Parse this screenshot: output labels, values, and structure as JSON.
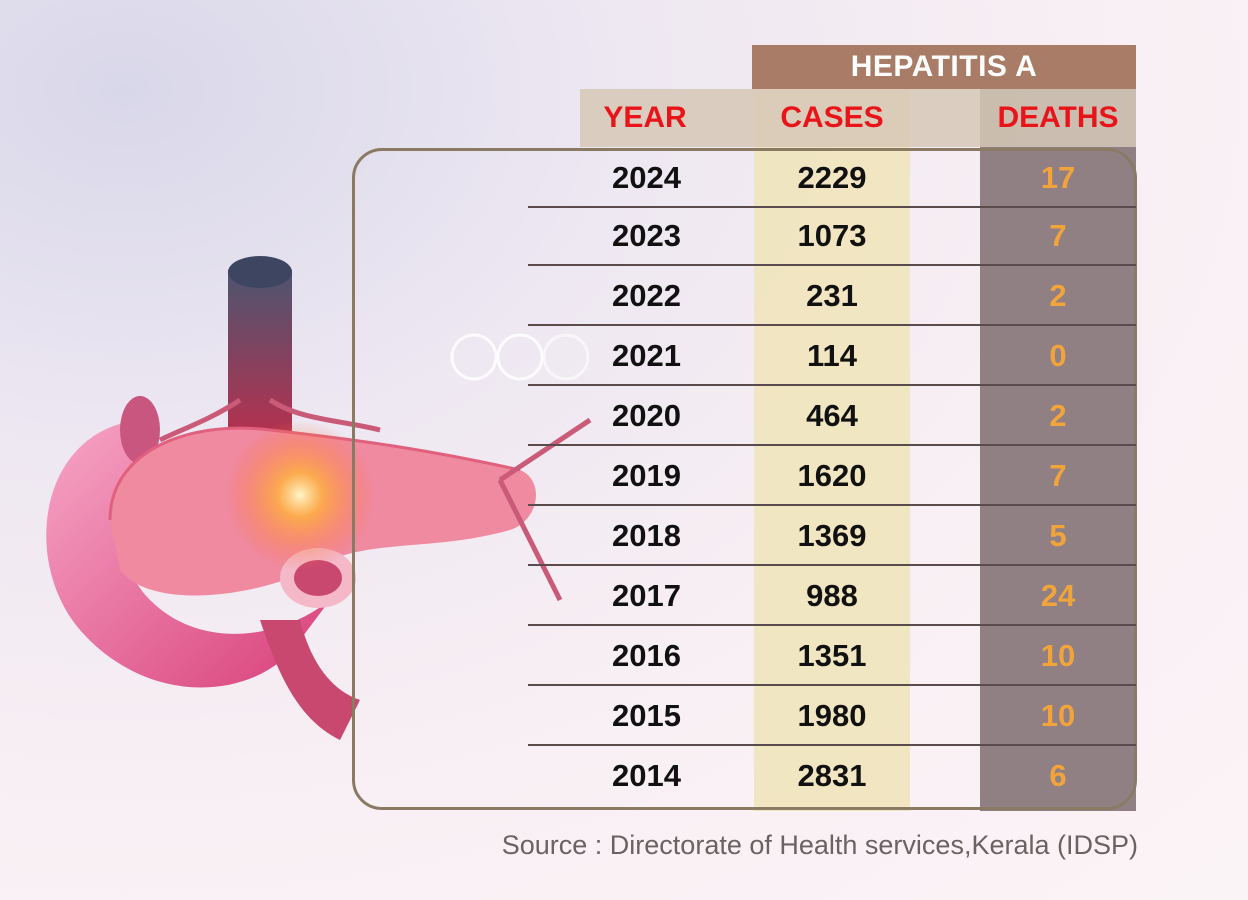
{
  "chart_data": {
    "type": "table",
    "title": "HEPATITIS A",
    "columns": [
      "YEAR",
      "CASES",
      "DEATHS"
    ],
    "rows": [
      {
        "year": "2024",
        "cases": "2229",
        "deaths": "17"
      },
      {
        "year": "2023",
        "cases": "1073",
        "deaths": "7"
      },
      {
        "year": "2022",
        "cases": "231",
        "deaths": "2"
      },
      {
        "year": "2021",
        "cases": "114",
        "deaths": "0"
      },
      {
        "year": "2020",
        "cases": "464",
        "deaths": "2"
      },
      {
        "year": "2019",
        "cases": "1620",
        "deaths": "7"
      },
      {
        "year": "2018",
        "cases": "1369",
        "deaths": "5"
      },
      {
        "year": "2017",
        "cases": "988",
        "deaths": "24"
      },
      {
        "year": "2016",
        "cases": "1351",
        "deaths": "10"
      },
      {
        "year": "2015",
        "cases": "1980",
        "deaths": "10"
      },
      {
        "year": "2014",
        "cases": "2831",
        "deaths": "6"
      }
    ],
    "source": "Source : Directorate of Health services,Kerala (IDSP)"
  },
  "colors": {
    "header_bg": "#a87c66",
    "column_header_text": "#e8141a",
    "deaths_text": "#f2a43a",
    "cases_column_bg": "#f0e4b8",
    "deaths_column_bg": "#87767a"
  },
  "illustration": "pancreas-illustration"
}
